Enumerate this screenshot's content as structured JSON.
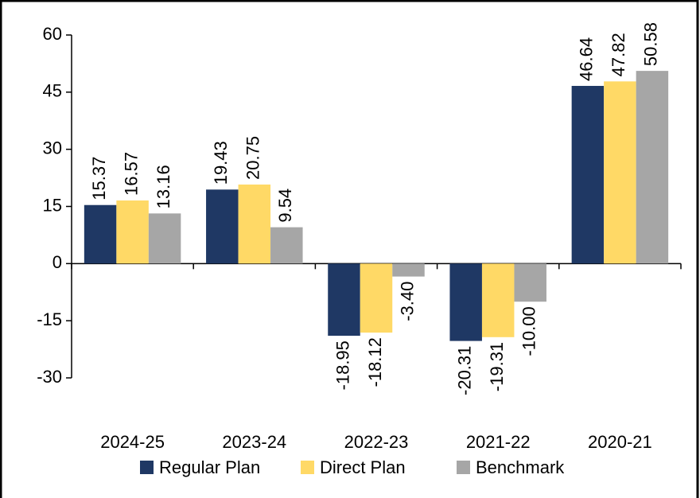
{
  "chart_data": {
    "type": "bar",
    "categories": [
      "2024-25",
      "2023-24",
      "2022-23",
      "2021-22",
      "2020-21"
    ],
    "series": [
      {
        "name": "Regular Plan",
        "color": "#1f3864",
        "values": [
          15.37,
          19.43,
          -18.95,
          -20.31,
          46.64
        ],
        "value_labels": [
          "15.37",
          "19.43",
          "-18.95",
          "-20.31",
          "46.64"
        ]
      },
      {
        "name": "Direct Plan",
        "color": "#ffd966",
        "values": [
          16.57,
          20.75,
          -18.12,
          -19.31,
          47.82
        ],
        "value_labels": [
          "16.57",
          "20.75",
          "-18.12",
          "-19.31",
          "47.82"
        ]
      },
      {
        "name": "Benchmark",
        "color": "#a6a6a6",
        "values": [
          13.16,
          9.54,
          -3.4,
          -10.0,
          50.58
        ],
        "value_labels": [
          "13.16",
          "9.54",
          "-3.40",
          "-10.00",
          "50.58"
        ]
      }
    ],
    "ylim": [
      -30,
      60
    ],
    "yticks": [
      -30,
      -15,
      0,
      15,
      30,
      45,
      60
    ],
    "legend": "bottom"
  }
}
